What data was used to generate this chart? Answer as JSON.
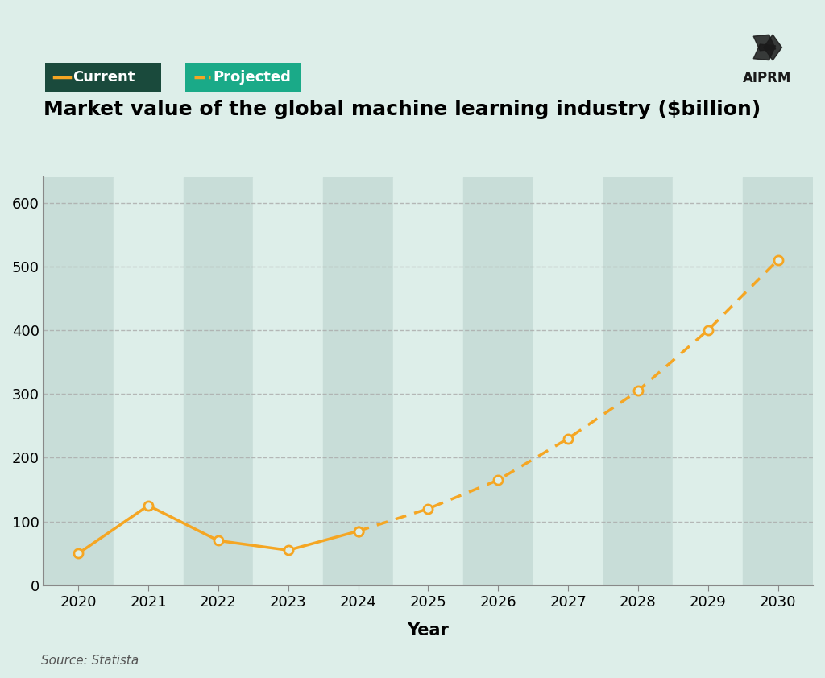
{
  "title": "Market value of the global machine learning industry ($billion)",
  "xlabel": "Year",
  "source": "Source: Statista",
  "background_color": "#ddeee9",
  "plot_bg_color": "#ddeee9",
  "line_color": "#f5a623",
  "current_years": [
    2020,
    2021,
    2022,
    2023,
    2024
  ],
  "current_values": [
    50,
    125,
    70,
    55,
    85
  ],
  "projected_years": [
    2024,
    2025,
    2026,
    2027,
    2028,
    2029,
    2030
  ],
  "projected_values": [
    85,
    120,
    165,
    230,
    305,
    400,
    510
  ],
  "ylim": [
    0,
    640
  ],
  "yticks": [
    0,
    100,
    200,
    300,
    400,
    500,
    600
  ],
  "xlim": [
    2019.5,
    2030.5
  ],
  "xticks": [
    2020,
    2021,
    2022,
    2023,
    2024,
    2025,
    2026,
    2027,
    2028,
    2029,
    2030
  ],
  "legend_current_bg": "#1a4a3c",
  "legend_projected_bg": "#1aaa88",
  "legend_text_color": "#ffffff",
  "title_fontsize": 18,
  "axis_label_fontsize": 15,
  "tick_fontsize": 13,
  "source_fontsize": 11,
  "stripe_colors": [
    "#c8ddd8",
    "#ddeee9"
  ],
  "grid_color": "#aaaaaa",
  "marker_color": "#f5a623",
  "marker_face": "#ddeee9",
  "marker_size": 8,
  "line_width": 2.5
}
